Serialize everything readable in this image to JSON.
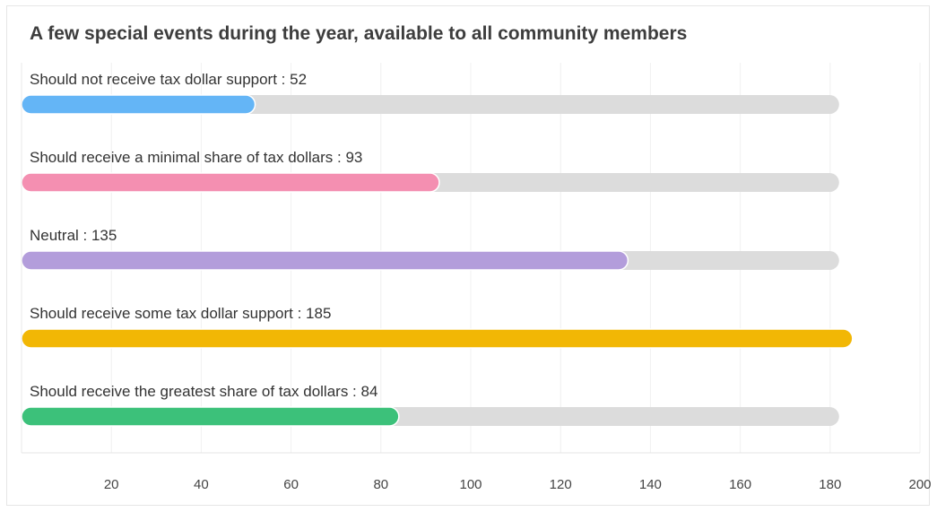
{
  "chart_data": {
    "type": "bar",
    "orientation": "horizontal",
    "title": "A few special events during the year, available to all community members",
    "xlabel": "",
    "ylabel": "",
    "xlim": [
      0,
      200
    ],
    "ticks": [
      20,
      40,
      60,
      80,
      100,
      120,
      140,
      160,
      180,
      200
    ],
    "grid": true,
    "track_max": 182,
    "categories": [
      "Should not receive tax dollar support",
      "Should receive a minimal share of tax dollars",
      "Neutral",
      "Should receive some tax dollar support",
      "Should receive the greatest share of tax dollars"
    ],
    "values": [
      52,
      93,
      135,
      185,
      84
    ],
    "colors": [
      "#64b5f6",
      "#f48fb1",
      "#b39ddb",
      "#f2b705",
      "#3cc17a"
    ],
    "track_color": "#dcdcdc",
    "label_separator": " : "
  }
}
